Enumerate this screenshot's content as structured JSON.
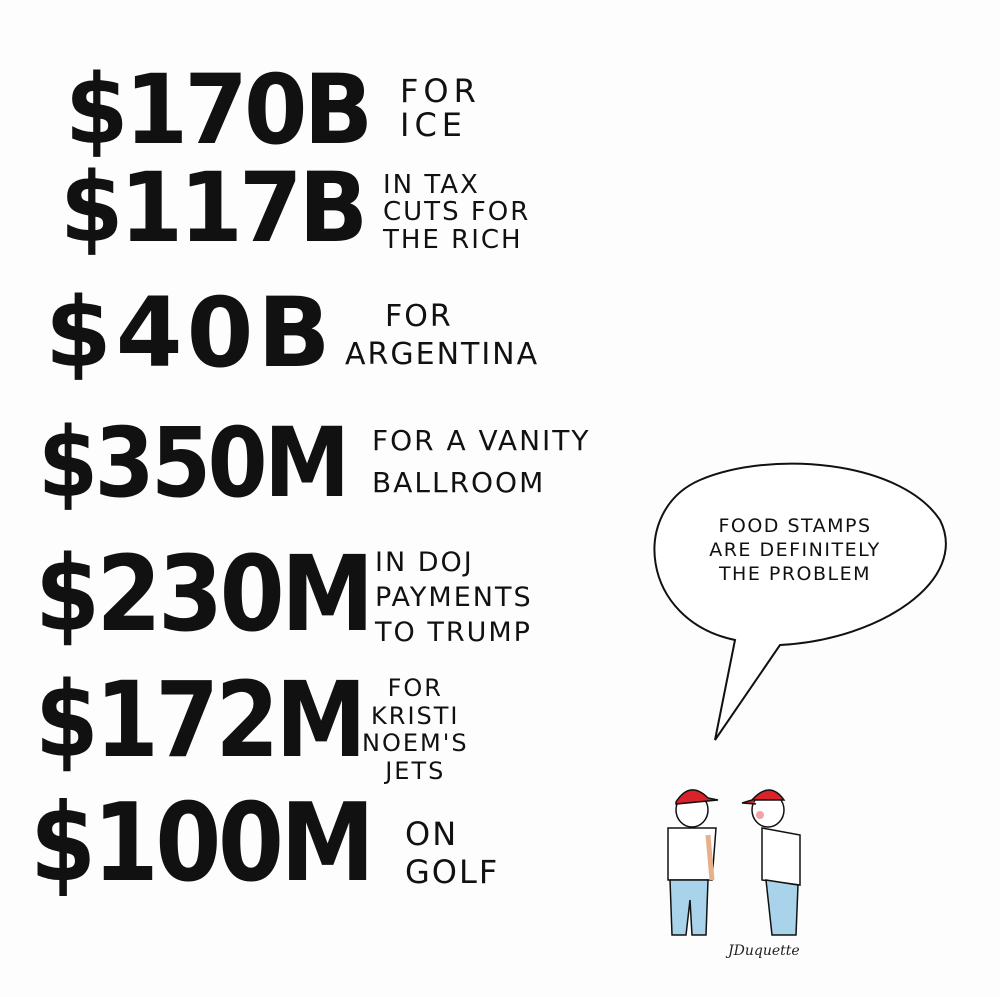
{
  "items": [
    {
      "amount": "$170B",
      "label": [
        "FOR",
        "ICE"
      ]
    },
    {
      "amount": "$117B",
      "label": [
        "IN TAX",
        "CUTS FOR",
        "THE RICH"
      ]
    },
    {
      "amount": "$40B",
      "label": [
        "FOR",
        "ARGENTINA"
      ]
    },
    {
      "amount": "$350M",
      "label": [
        "FOR A VANITY",
        "BALLROOM"
      ]
    },
    {
      "amount": "$230M",
      "label": [
        "IN DOJ",
        "PAYMENTS",
        "TO TRUMP"
      ]
    },
    {
      "amount": "$172M",
      "label": [
        "FOR",
        "KRISTI",
        "NOEM'S",
        "JETS"
      ]
    },
    {
      "amount": "$100M",
      "label": [
        "ON",
        "GOLF"
      ]
    }
  ],
  "speech_bubble": [
    "FOOD STAMPS",
    "ARE DEFINITELY",
    "THE PROBLEM"
  ],
  "signature": "JDuquette",
  "colors": {
    "ink": "#111111",
    "cap": "#d8232a",
    "jeans": "#a9d3ea"
  }
}
